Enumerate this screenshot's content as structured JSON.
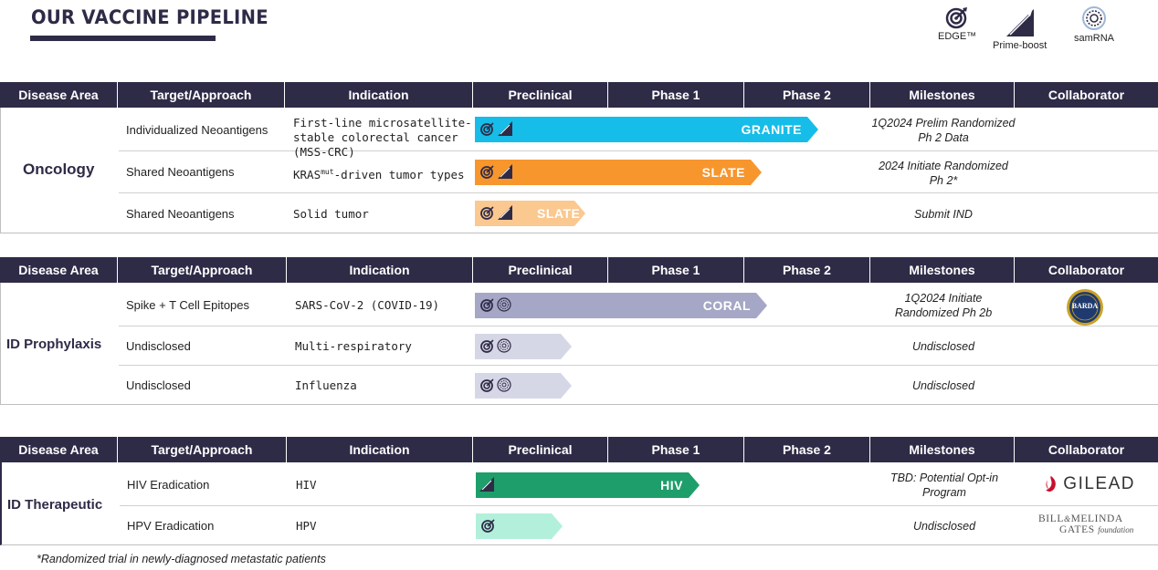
{
  "title": "OUR VACCINE PIPELINE",
  "legend": [
    {
      "icon": "edge-target-icon",
      "label": "EDGE™"
    },
    {
      "icon": "prime-boost-icon",
      "label": "Prime-boost"
    },
    {
      "icon": "samrna-icon",
      "label": "samRNA"
    }
  ],
  "headers": [
    "Disease Area",
    "Target/Approach",
    "Indication",
    "Preclinical",
    "Phase 1",
    "Phase 2",
    "Milestones",
    "Collaborator"
  ],
  "sections": [
    {
      "area": "Oncology",
      "rows": [
        {
          "target": "Individualized Neoantigens",
          "indication": "First-line microsatellite-stable colorectal cancer (MSS-CRC)",
          "program": "GRANITE",
          "progress": 0.93,
          "milestone": "1Q2024 Prelim Randomized Ph 2 Data",
          "collaborator": ""
        },
        {
          "target": "Shared Neoantigens",
          "indication_pre": "KRAS",
          "indication_sup": "mut",
          "indication_post": "-driven tumor types",
          "program": "SLATE",
          "progress": 0.6,
          "milestone": "2024 Initiate Randomized Ph 2*",
          "collaborator": ""
        },
        {
          "target": "Shared Neoantigens",
          "indication": "Solid tumor",
          "program": "SLATE",
          "progress": 0.18,
          "milestone": "Submit IND",
          "collaborator": ""
        }
      ]
    },
    {
      "area": "ID Prophylaxis",
      "rows": [
        {
          "target": "Spike + T Cell Epitopes",
          "indication": "SARS-CoV-2 (COVID-19)",
          "program": "CORAL",
          "progress": 0.6,
          "milestone": "1Q2024 Initiate Randomized Ph 2b",
          "collaborator": "BARDA"
        },
        {
          "target": "Undisclosed",
          "indication": "Multi-respiratory",
          "program": "",
          "progress": 0.16,
          "milestone": "Undisclosed",
          "collaborator": ""
        },
        {
          "target": "Undisclosed",
          "indication": "Influenza",
          "program": "",
          "progress": 0.16,
          "milestone": "Undisclosed",
          "collaborator": ""
        }
      ]
    },
    {
      "area": "ID Therapeutic",
      "rows": [
        {
          "target": "HIV Eradication",
          "indication": "HIV",
          "program": "HIV",
          "progress": 0.56,
          "milestone": "TBD: Potential Opt-in Program",
          "collaborator": "GILEAD"
        },
        {
          "target": "HPV Eradication",
          "indication": "HPV",
          "program": "",
          "progress": 0.15,
          "milestone": "Undisclosed",
          "collaborator": "BILL&MELINDA GATES foundation"
        }
      ]
    }
  ],
  "collaborators": {
    "barda": "BARDA",
    "gilead": "GILEAD",
    "gates_line1_a": "Bill",
    "gates_amp": "&",
    "gates_line1_b": "Melinda",
    "gates_line2": "Gates",
    "gates_line2_b": "foundation"
  },
  "colors": {
    "navy": "#2e2b47",
    "granite": "#16bde8",
    "slate_dark": "#f7962d",
    "slate_light": "#fbc890",
    "coral": "#a6a7c6",
    "undisclosed": "#d6d7e6",
    "hiv": "#1e9e6a",
    "hpv": "#b2f0dc",
    "gilead_red": "#c8102e"
  },
  "footnote": "*Randomized trial in newly-diagnosed metastatic patients"
}
